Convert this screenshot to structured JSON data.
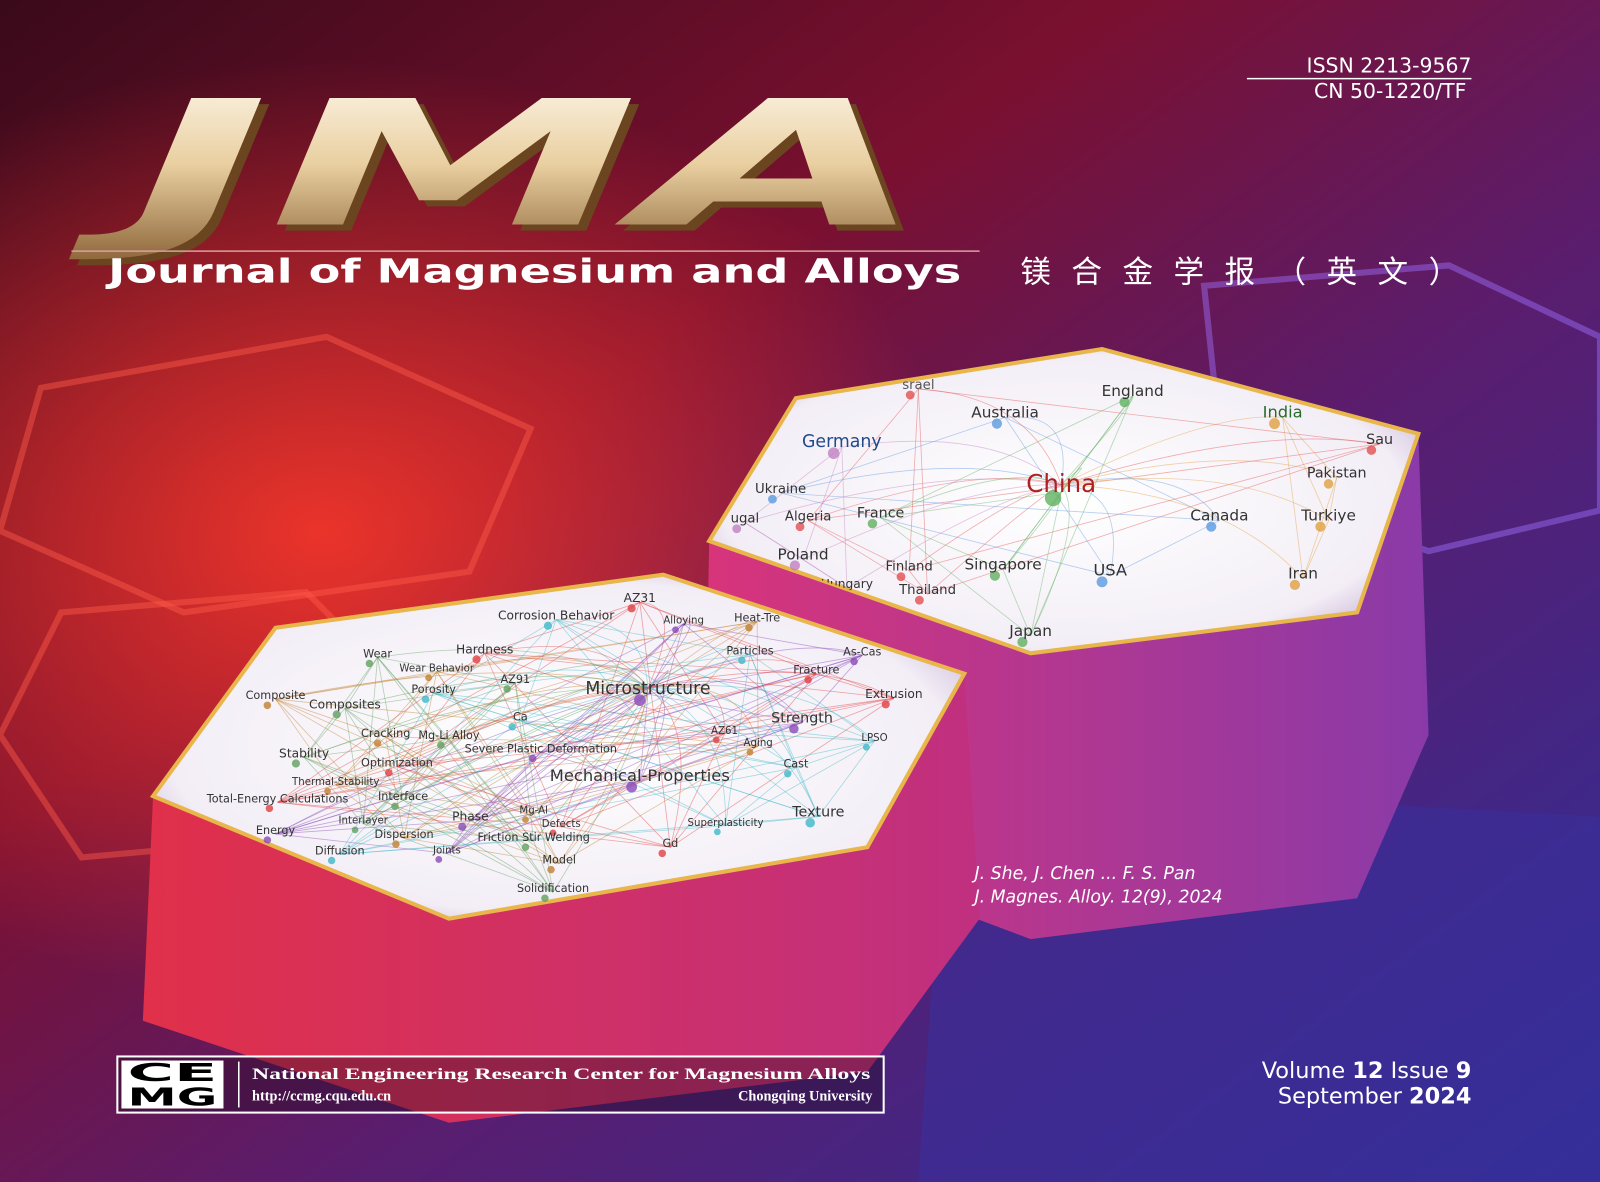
{
  "header": {
    "issn": "ISSN 2213-9567",
    "cn": "CN  50-1220/TF",
    "logo": "JMA",
    "title": "Journal of Magnesium and Alloys",
    "title_cn": "镁合金学报（英文）"
  },
  "network_countries": {
    "labels": [
      "srael",
      "England",
      "Australia",
      "India",
      "Germany",
      "Sau",
      "China",
      "Ukraine",
      "Pakistan",
      "ugal",
      "Algeria",
      "France",
      "Canada",
      "Turkiye",
      "Poland",
      "Finland",
      "Singapore",
      "USA",
      "Iran",
      "Hungary",
      "Thailand",
      "Japan"
    ]
  },
  "network_keywords": {
    "labels": [
      "AZ31",
      "Corrosion Behavior",
      "Alloying",
      "Heat-Tre",
      "Wear",
      "Hardness",
      "Particles",
      "As-Cas",
      "Wear Behavior",
      "AZ91",
      "Fracture",
      "Porosity",
      "Microstructure",
      "Composite",
      "Composites",
      "Extrusion",
      "Ca",
      "Strength",
      "Cracking",
      "Mg-Li Alloy",
      "AZ61",
      "LPSO",
      "Severe Plastic Deformation",
      "Aging",
      "Stability",
      "Optimization",
      "Cast",
      "Mechanical-Properties",
      "Thermal-Stability",
      "Interface",
      "Total-Energy Calculations",
      "Texture",
      "Phase",
      "Mg-Al",
      "Interlayer",
      "Defects",
      "Superplasticity",
      "Energy",
      "Dispersion",
      "Friction Stir Welding",
      "Gd",
      "Diffusion",
      "Joints",
      "Model",
      "Solidification"
    ]
  },
  "article": {
    "authors": "J. She, J. Chen ... F. S. Pan",
    "citation": "J. Magnes. Alloy. 12(9), 2024"
  },
  "publisher": {
    "logo_top": "CE",
    "logo_bottom": "MG",
    "name": "National Engineering Research Center for Magnesium Alloys",
    "url": "http://ccmg.cqu.edu.cn",
    "university": "Chongqing University"
  },
  "issue": {
    "volume_label": "Volume",
    "volume": 12,
    "issue_label": "Issue",
    "issue": 9,
    "month": "September",
    "year": 2024
  }
}
